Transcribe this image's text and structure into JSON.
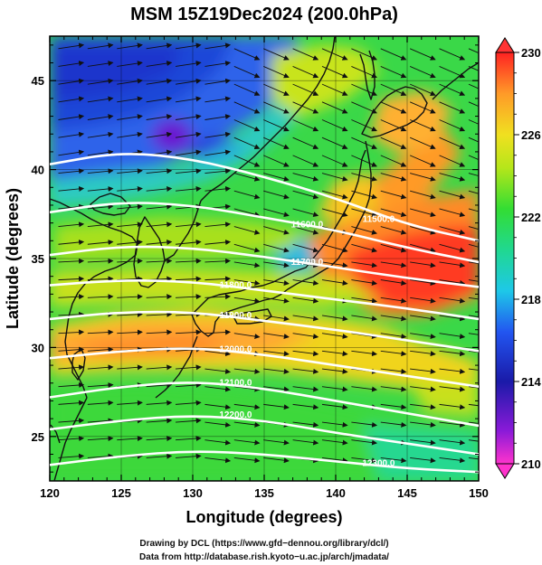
{
  "title": "MSM 15Z19Dec2024 (200.0hPa)",
  "xlabel": "Longitude (degrees)",
  "ylabel": "Latitude  (degrees)",
  "x_ticks": [
    "120",
    "125",
    "130",
    "135",
    "140",
    "145",
    "150"
  ],
  "y_ticks": [
    "25",
    "30",
    "35",
    "40",
    "45"
  ],
  "colorbar": {
    "ticks": [
      "210",
      "214",
      "218",
      "222",
      "226",
      "230"
    ],
    "range": [
      210,
      230
    ]
  },
  "contour_labels": [
    "11500.0",
    "11600.0",
    "11700.0",
    "11800.0",
    "11900.0",
    "12000.0",
    "12100.0",
    "12200.0",
    "12300.0"
  ],
  "footer": {
    "line1": "Drawing by DCL (https://www.gfd−dennou.org/library/dcl/)",
    "line2": "Data from http://database.rish.kyoto−u.ac.jp/arch/jmadata/"
  },
  "chart_data": {
    "type": "heatmap",
    "variable": "temperature with wind vectors and geopotential height contours",
    "xlim": [
      120,
      150
    ],
    "ylim": [
      22.5,
      47.5
    ],
    "color_range": [
      210,
      230
    ],
    "height_contours": [
      {
        "label": "11500.0",
        "pts": [
          [
            120,
            40.3
          ],
          [
            125,
            41.0
          ],
          [
            130,
            40.6
          ],
          [
            135,
            39.6
          ],
          [
            140,
            38.4
          ],
          [
            145,
            36.9
          ],
          [
            150,
            36.0
          ]
        ]
      },
      {
        "label": "11600.0",
        "pts": [
          [
            120,
            37.6
          ],
          [
            125,
            38.2
          ],
          [
            130,
            38.0
          ],
          [
            135,
            37.3
          ],
          [
            140,
            36.6
          ],
          [
            145,
            35.6
          ],
          [
            150,
            34.8
          ]
        ]
      },
      {
        "label": "11700.0",
        "pts": [
          [
            120,
            35.2
          ],
          [
            125,
            35.7
          ],
          [
            130,
            35.6
          ],
          [
            135,
            35.1
          ],
          [
            140,
            34.5
          ],
          [
            145,
            33.9
          ],
          [
            150,
            33.4
          ]
        ]
      },
      {
        "label": "11800.0",
        "pts": [
          [
            120,
            33.5
          ],
          [
            125,
            33.8
          ],
          [
            130,
            33.7
          ],
          [
            135,
            33.2
          ],
          [
            140,
            32.7
          ],
          [
            145,
            32.2
          ],
          [
            150,
            31.6
          ]
        ]
      },
      {
        "label": "11900.0",
        "pts": [
          [
            120,
            31.6
          ],
          [
            125,
            32.0
          ],
          [
            130,
            32.0
          ],
          [
            135,
            31.5
          ],
          [
            140,
            31.0
          ],
          [
            145,
            30.4
          ],
          [
            150,
            29.8
          ]
        ]
      },
      {
        "label": "12000.0",
        "pts": [
          [
            120,
            29.4
          ],
          [
            125,
            29.8
          ],
          [
            130,
            30.0
          ],
          [
            135,
            29.6
          ],
          [
            140,
            29.0
          ],
          [
            145,
            28.4
          ],
          [
            150,
            27.8
          ]
        ]
      },
      {
        "label": "12100.0",
        "pts": [
          [
            120,
            27.2
          ],
          [
            125,
            27.8
          ],
          [
            130,
            28.1
          ],
          [
            135,
            27.7
          ],
          [
            140,
            27.0
          ],
          [
            145,
            26.3
          ],
          [
            150,
            25.6
          ]
        ]
      },
      {
        "label": "12200.0",
        "pts": [
          [
            120,
            25.4
          ],
          [
            125,
            25.9
          ],
          [
            130,
            26.2
          ],
          [
            135,
            25.9
          ],
          [
            140,
            25.2
          ],
          [
            145,
            24.6
          ],
          [
            150,
            24.0
          ]
        ]
      },
      {
        "label": "12300.0",
        "pts": [
          [
            120,
            23.4
          ],
          [
            125,
            23.9
          ],
          [
            130,
            24.2
          ],
          [
            135,
            24.0
          ],
          [
            140,
            23.6
          ],
          [
            145,
            23.2
          ],
          [
            150,
            23.0
          ]
        ]
      }
    ]
  }
}
